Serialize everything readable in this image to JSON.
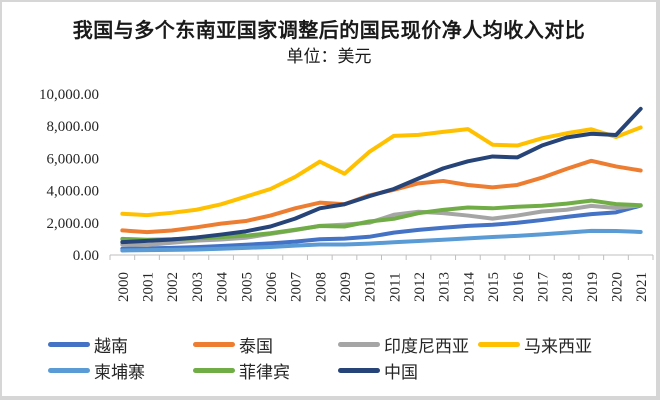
{
  "header": {
    "title": "我国与多个东南亚国家调整后的国民现价净人均收入对比",
    "subtitle": "单位：美元"
  },
  "chart_data": {
    "type": "line",
    "title": "我国与多个东南亚国家调整后的国民现价净人均收入对比",
    "unit_label": "单位：美元",
    "xlabel": "",
    "ylabel": "",
    "x": [
      "2000",
      "2001",
      "2002",
      "2003",
      "2004",
      "2005",
      "2006",
      "2007",
      "2008",
      "2009",
      "2010",
      "2011",
      "2012",
      "2013",
      "2014",
      "2015",
      "2016",
      "2017",
      "2018",
      "2019",
      "2020",
      "2021"
    ],
    "ylim": [
      0,
      10000
    ],
    "ytick_step": 2000,
    "ytick_labels": [
      "0.00",
      "2,000.00",
      "4,000.00",
      "6,000.00",
      "8,000.00",
      "10,000.00"
    ],
    "grid": false,
    "legend_position": "bottom",
    "series": [
      {
        "key": "vietnam",
        "name": "越南",
        "color": "#4472C4",
        "values": [
          390,
          410,
          440,
          490,
          560,
          640,
          720,
          830,
          980,
          1020,
          1130,
          1390,
          1560,
          1690,
          1810,
          1880,
          2000,
          2170,
          2370,
          2540,
          2650,
          3070
        ]
      },
      {
        "key": "thailand",
        "name": "泰国",
        "color": "#ED7D31",
        "values": [
          1530,
          1420,
          1520,
          1720,
          1950,
          2110,
          2450,
          2900,
          3250,
          3150,
          3700,
          4050,
          4450,
          4600,
          4350,
          4200,
          4350,
          4800,
          5350,
          5850,
          5500,
          5250
        ]
      },
      {
        "key": "indonesia",
        "name": "印度尼西亚",
        "color": "#A5A5A5",
        "values": [
          650,
          620,
          760,
          890,
          960,
          1070,
          1310,
          1540,
          1810,
          1890,
          2000,
          2500,
          2690,
          2600,
          2450,
          2260,
          2450,
          2700,
          2810,
          3050,
          2920,
          3080
        ]
      },
      {
        "key": "malaysia",
        "name": "马来西亚",
        "color": "#FFC000",
        "values": [
          2560,
          2480,
          2620,
          2810,
          3150,
          3620,
          4100,
          4850,
          5800,
          5050,
          6400,
          7400,
          7460,
          7650,
          7820,
          6850,
          6800,
          7250,
          7560,
          7810,
          7330,
          7920
        ]
      },
      {
        "key": "cambodia",
        "name": "柬埔寨",
        "color": "#5B9BD5",
        "values": [
          280,
          300,
          320,
          340,
          390,
          440,
          500,
          580,
          650,
          650,
          710,
          790,
          870,
          950,
          1030,
          1120,
          1190,
          1280,
          1390,
          1500,
          1490,
          1430
        ]
      },
      {
        "key": "philippines",
        "name": "菲律宾",
        "color": "#70AD47",
        "values": [
          1000,
          950,
          980,
          1030,
          1110,
          1200,
          1350,
          1570,
          1800,
          1770,
          2080,
          2250,
          2600,
          2800,
          2950,
          2900,
          3000,
          3060,
          3190,
          3380,
          3160,
          3090
        ]
      },
      {
        "key": "china",
        "name": "中国",
        "color": "#264478",
        "values": [
          800,
          880,
          960,
          1090,
          1270,
          1470,
          1770,
          2260,
          2900,
          3150,
          3650,
          4100,
          4750,
          5380,
          5820,
          6120,
          6060,
          6800,
          7300,
          7530,
          7450,
          9080
        ]
      }
    ]
  }
}
